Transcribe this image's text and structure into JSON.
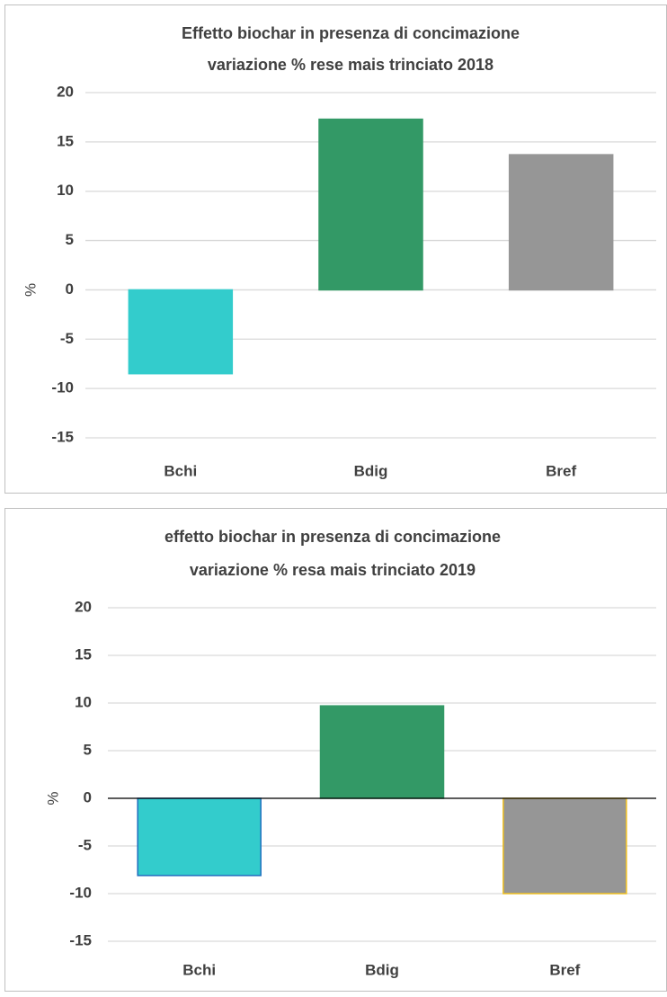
{
  "chart_data": [
    {
      "type": "bar",
      "title": "Effetto biochar in presenza di concimazione",
      "subtitle": "variazione  %  rese mais trinciato 2018",
      "y_label": "%",
      "categories": [
        "Bchi",
        "Bdig",
        "Bref"
      ],
      "values": [
        -8.5,
        17.3,
        13.7
      ],
      "colors": [
        "#33cccc",
        "#339966",
        "#969696"
      ],
      "edgecolors": [
        "#33cccc",
        "#339966",
        "#969696"
      ],
      "ylim": [
        -15,
        20
      ],
      "yticks": [
        -15,
        -10,
        -5,
        0,
        5,
        10,
        15,
        20
      ],
      "grid": true,
      "zero_line": false
    },
    {
      "type": "bar",
      "title": "effetto biochar in presenza di concimazione",
      "subtitle": "variazione %  resa mais trinciato 2019",
      "y_label": "%",
      "categories": [
        "Bchi",
        "Bdig",
        "Bref"
      ],
      "values": [
        -8.1,
        9.7,
        -10
      ],
      "colors": [
        "#33cccc",
        "#339966",
        "#969696"
      ],
      "edgecolors": [
        "#1f6fbf",
        "#339966",
        "#f0c020"
      ],
      "ylim": [
        -15,
        20
      ],
      "yticks": [
        -15,
        -10,
        -5,
        0,
        5,
        10,
        15,
        20
      ],
      "grid": true,
      "zero_line": true
    }
  ]
}
